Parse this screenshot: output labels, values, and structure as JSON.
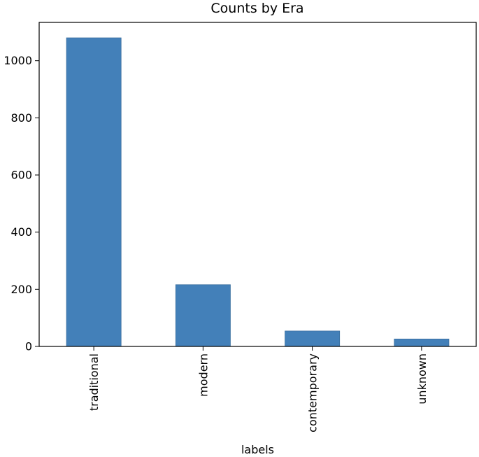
{
  "chart_data": {
    "type": "bar",
    "title": "Counts by Era",
    "xlabel": "labels",
    "ylabel": "",
    "categories": [
      "traditional",
      "modern",
      "contemporary",
      "unknown"
    ],
    "values": [
      1080,
      216,
      54,
      26
    ],
    "ylim": [
      0,
      1134
    ],
    "yticks": [
      0,
      200,
      400,
      600,
      800,
      1000
    ],
    "grid": false,
    "legend": "none",
    "bar_color": "#4380b9",
    "bar_edge_color": "#3a6f9f"
  }
}
